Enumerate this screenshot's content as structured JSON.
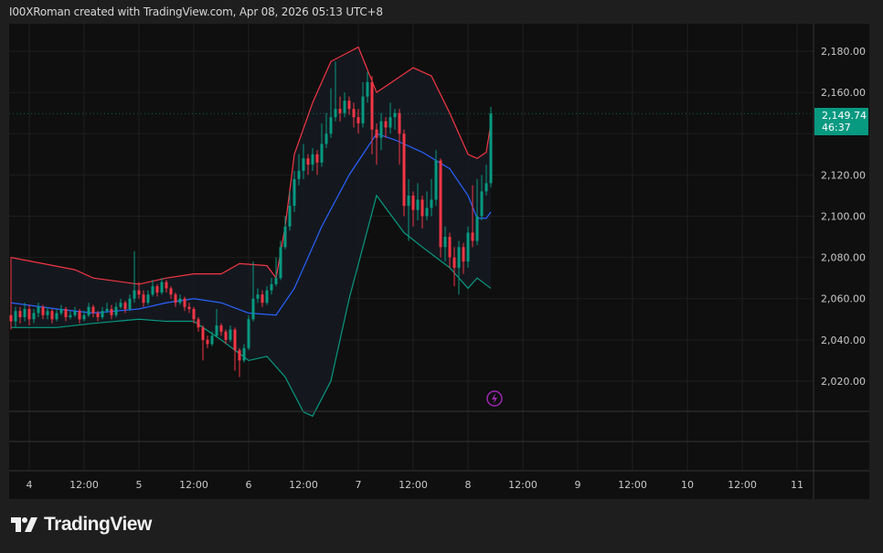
{
  "header": {
    "title": "I00XRoman created with TradingView.com, Apr 08, 2026 05:13 UTC+8"
  },
  "brand": {
    "name": "TradingView"
  },
  "current_price": {
    "value": "2,149.74",
    "countdown": "46:37"
  },
  "colors": {
    "up": "#089981",
    "down": "#f23645",
    "upper_band": "#f23645",
    "basis": "#2962ff",
    "lower_band": "#089981",
    "event_icon": "#9c27b0"
  },
  "icons": {
    "event": "lightning-icon"
  },
  "chart_data": {
    "type": "candlestick",
    "interval": "1h",
    "start": "03 20:00",
    "ylim": [
      2005,
      2190
    ],
    "grid": true,
    "y_ticks": [
      "2,020.00",
      "2,040.00",
      "2,060.00",
      "2,080.00",
      "2,100.00",
      "2,120.00",
      "2,140.00",
      "2,160.00",
      "2,180.00"
    ],
    "y_tick_values": [
      2020,
      2040,
      2060,
      2080,
      2100,
      2120,
      2140,
      2160,
      2180
    ],
    "x_ticks": [
      "4",
      "12:00",
      "5",
      "12:00",
      "6",
      "12:00",
      "7",
      "12:00",
      "8",
      "12:00",
      "9",
      "12:00",
      "10",
      "12:00",
      "11"
    ],
    "ohlc": [
      [
        2052,
        2080,
        2045,
        2049
      ],
      [
        2049,
        2056,
        2046,
        2054
      ],
      [
        2054,
        2056,
        2048,
        2051
      ],
      [
        2051,
        2058,
        2049,
        2055
      ],
      [
        2055,
        2057,
        2047,
        2050
      ],
      [
        2050,
        2055,
        2048,
        2053
      ],
      [
        2053,
        2058,
        2051,
        2056
      ],
      [
        2056,
        2057,
        2050,
        2052
      ],
      [
        2052,
        2056,
        2050,
        2054
      ],
      [
        2054,
        2055,
        2048,
        2050
      ],
      [
        2050,
        2055,
        2049,
        2053
      ],
      [
        2053,
        2057,
        2052,
        2055
      ],
      [
        2055,
        2056,
        2049,
        2051
      ],
      [
        2051,
        2054,
        2050,
        2052
      ],
      [
        2052,
        2056,
        2051,
        2054
      ],
      [
        2054,
        2055,
        2048,
        2050
      ],
      [
        2050,
        2054,
        2049,
        2052
      ],
      [
        2052,
        2058,
        2051,
        2056
      ],
      [
        2056,
        2057,
        2051,
        2053
      ],
      [
        2053,
        2054,
        2049,
        2051
      ],
      [
        2051,
        2056,
        2050,
        2054
      ],
      [
        2054,
        2058,
        2053,
        2055
      ],
      [
        2055,
        2057,
        2050,
        2052
      ],
      [
        2052,
        2058,
        2051,
        2056
      ],
      [
        2056,
        2060,
        2055,
        2058
      ],
      [
        2058,
        2059,
        2053,
        2055
      ],
      [
        2055,
        2062,
        2054,
        2060
      ],
      [
        2060,
        2083,
        2058,
        2064
      ],
      [
        2064,
        2068,
        2060,
        2062
      ],
      [
        2062,
        2064,
        2056,
        2058
      ],
      [
        2058,
        2064,
        2057,
        2062
      ],
      [
        2062,
        2069,
        2061,
        2066
      ],
      [
        2066,
        2067,
        2061,
        2063
      ],
      [
        2063,
        2070,
        2062,
        2068
      ],
      [
        2068,
        2069,
        2063,
        2065
      ],
      [
        2065,
        2066,
        2060,
        2062
      ],
      [
        2062,
        2063,
        2056,
        2058
      ],
      [
        2058,
        2062,
        2057,
        2060
      ],
      [
        2060,
        2061,
        2054,
        2056
      ],
      [
        2056,
        2058,
        2053,
        2055
      ],
      [
        2055,
        2056,
        2048,
        2050
      ],
      [
        2050,
        2051,
        2044,
        2046
      ],
      [
        2046,
        2047,
        2030,
        2040
      ],
      [
        2040,
        2042,
        2036,
        2038
      ],
      [
        2038,
        2044,
        2037,
        2042
      ],
      [
        2042,
        2055,
        2041,
        2047
      ],
      [
        2047,
        2048,
        2042,
        2044
      ],
      [
        2044,
        2045,
        2038,
        2040
      ],
      [
        2040,
        2047,
        2039,
        2045
      ],
      [
        2045,
        2046,
        2025,
        2035
      ],
      [
        2035,
        2036,
        2022,
        2030
      ],
      [
        2030,
        2038,
        2029,
        2036
      ],
      [
        2036,
        2052,
        2035,
        2050
      ],
      [
        2050,
        2078,
        2049,
        2060
      ],
      [
        2060,
        2065,
        2058,
        2062
      ],
      [
        2062,
        2064,
        2056,
        2058
      ],
      [
        2058,
        2066,
        2057,
        2064
      ],
      [
        2064,
        2070,
        2062,
        2067
      ],
      [
        2067,
        2080,
        2066,
        2070
      ],
      [
        2070,
        2088,
        2069,
        2085
      ],
      [
        2085,
        2100,
        2084,
        2095
      ],
      [
        2095,
        2112,
        2093,
        2105
      ],
      [
        2105,
        2122,
        2102,
        2118
      ],
      [
        2118,
        2130,
        2115,
        2122
      ],
      [
        2122,
        2135,
        2118,
        2128
      ],
      [
        2128,
        2130,
        2120,
        2125
      ],
      [
        2125,
        2133,
        2122,
        2130
      ],
      [
        2130,
        2132,
        2120,
        2126
      ],
      [
        2126,
        2145,
        2124,
        2135
      ],
      [
        2135,
        2150,
        2133,
        2140
      ],
      [
        2140,
        2162,
        2138,
        2148
      ],
      [
        2148,
        2175,
        2146,
        2152
      ],
      [
        2152,
        2158,
        2146,
        2150
      ],
      [
        2150,
        2160,
        2148,
        2156
      ],
      [
        2156,
        2158,
        2149,
        2152
      ],
      [
        2152,
        2155,
        2143,
        2148
      ],
      [
        2148,
        2152,
        2140,
        2145
      ],
      [
        2145,
        2165,
        2143,
        2158
      ],
      [
        2158,
        2170,
        2155,
        2165
      ],
      [
        2165,
        2168,
        2130,
        2142
      ],
      [
        2142,
        2145,
        2125,
        2138
      ],
      [
        2138,
        2150,
        2132,
        2146
      ],
      [
        2146,
        2148,
        2138,
        2143
      ],
      [
        2143,
        2155,
        2140,
        2148
      ],
      [
        2148,
        2152,
        2142,
        2150
      ],
      [
        2150,
        2152,
        2125,
        2140
      ],
      [
        2140,
        2142,
        2100,
        2105
      ],
      [
        2105,
        2118,
        2088,
        2110
      ],
      [
        2110,
        2112,
        2095,
        2103
      ],
      [
        2103,
        2116,
        2098,
        2108
      ],
      [
        2108,
        2110,
        2094,
        2100
      ],
      [
        2100,
        2112,
        2098,
        2104
      ],
      [
        2104,
        2118,
        2100,
        2108
      ],
      [
        2108,
        2132,
        2105,
        2127
      ],
      [
        2127,
        2128,
        2080,
        2085
      ],
      [
        2085,
        2095,
        2078,
        2090
      ],
      [
        2090,
        2092,
        2075,
        2080
      ],
      [
        2080,
        2085,
        2066,
        2075
      ],
      [
        2075,
        2088,
        2062,
        2085
      ],
      [
        2085,
        2087,
        2072,
        2078
      ],
      [
        2078,
        2095,
        2075,
        2092
      ],
      [
        2092,
        2115,
        2085,
        2088
      ],
      [
        2088,
        2118,
        2086,
        2100
      ],
      [
        2100,
        2120,
        2098,
        2112
      ],
      [
        2112,
        2125,
        2110,
        2116
      ],
      [
        2116,
        2153,
        2114,
        2149.74
      ]
    ],
    "bollinger": {
      "upper": [
        [
          "03 20",
          2080
        ],
        [
          "04 10",
          2074
        ],
        [
          "04 14",
          2070
        ],
        [
          "05 00",
          2067
        ],
        [
          "05 06",
          2070
        ],
        [
          "05 12",
          2072
        ],
        [
          "05 18",
          2072
        ],
        [
          "05 22",
          2077
        ],
        [
          "06 04",
          2076
        ],
        [
          "06 06",
          2070
        ],
        [
          "06 08",
          2095
        ],
        [
          "06 10",
          2130
        ],
        [
          "06 14",
          2155
        ],
        [
          "06 18",
          2175
        ],
        [
          "07 00",
          2182
        ],
        [
          "07 04",
          2160
        ],
        [
          "07 06",
          2163
        ],
        [
          "07 12",
          2172
        ],
        [
          "07 16",
          2168
        ],
        [
          "07 20",
          2150
        ],
        [
          "08 00",
          2130
        ],
        [
          "08 02",
          2128
        ],
        [
          "08 04",
          2131
        ],
        [
          "08 05",
          2145
        ]
      ],
      "basis": [
        [
          "03 20",
          2058
        ],
        [
          "04 06",
          2055
        ],
        [
          "04 14",
          2053
        ],
        [
          "05 00",
          2055
        ],
        [
          "05 06",
          2058
        ],
        [
          "05 12",
          2060
        ],
        [
          "05 18",
          2058
        ],
        [
          "06 00",
          2053
        ],
        [
          "06 06",
          2052
        ],
        [
          "06 10",
          2065
        ],
        [
          "06 16",
          2095
        ],
        [
          "06 22",
          2120
        ],
        [
          "07 04",
          2140
        ],
        [
          "07 08",
          2137
        ],
        [
          "07 14",
          2131
        ],
        [
          "07 20",
          2123
        ],
        [
          "08 00",
          2110
        ],
        [
          "08 02",
          2099
        ],
        [
          "08 04",
          2099
        ],
        [
          "08 05",
          2102
        ]
      ],
      "lower": [
        [
          "03 20",
          2046
        ],
        [
          "04 06",
          2046
        ],
        [
          "04 14",
          2048
        ],
        [
          "05 00",
          2050
        ],
        [
          "05 06",
          2049
        ],
        [
          "05 12",
          2049
        ],
        [
          "05 18",
          2040
        ],
        [
          "06 00",
          2030
        ],
        [
          "06 04",
          2032
        ],
        [
          "06 08",
          2022
        ],
        [
          "06 12",
          2005
        ],
        [
          "06 14",
          2003
        ],
        [
          "06 18",
          2020
        ],
        [
          "06 22",
          2060
        ],
        [
          "07 04",
          2110
        ],
        [
          "07 06",
          2104
        ],
        [
          "07 10",
          2092
        ],
        [
          "07 14",
          2085
        ],
        [
          "07 20",
          2075
        ],
        [
          "08 00",
          2065
        ],
        [
          "08 02",
          2070
        ],
        [
          "08 05",
          2065
        ]
      ]
    }
  }
}
